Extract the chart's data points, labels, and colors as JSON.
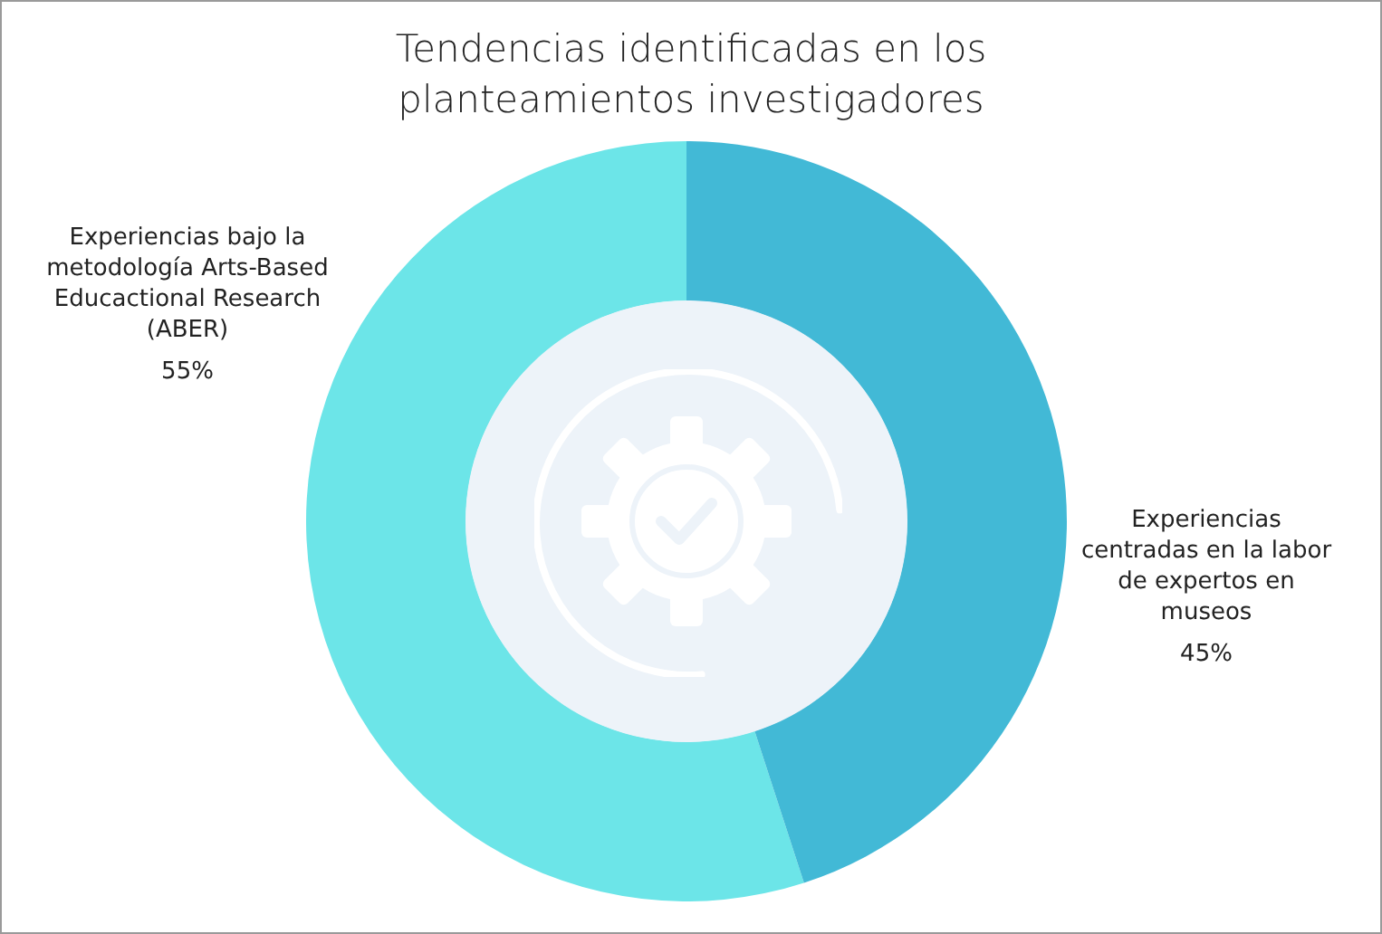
{
  "chart_data": {
    "type": "donut",
    "title": "Tendencias identificadas en los planteamientos investigadores",
    "categories": [
      "Experiencias bajo la metodología Arts-Based Educactional Research (ABER)",
      "Experiencias centradas en la labor de expertos en museos"
    ],
    "values": [
      55,
      45
    ],
    "colors": [
      "#6ce5e8",
      "#42b9d6"
    ],
    "value_labels": [
      "55%",
      "45%"
    ],
    "legend": false
  }
}
